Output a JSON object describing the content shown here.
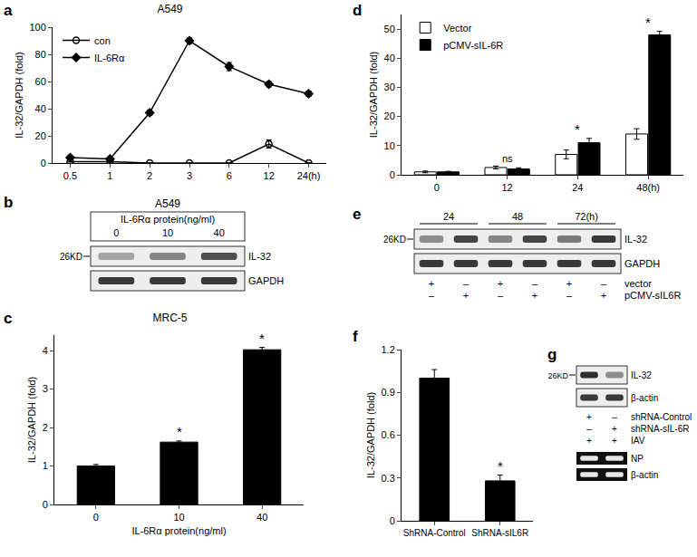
{
  "chart_data": [
    {
      "type": "line",
      "panel": "a",
      "title": "A549",
      "y_label": "IL-32/GAPDH (fold)",
      "categories": [
        "0.5",
        "1",
        "2",
        "3",
        "6",
        "12",
        "24(h)"
      ],
      "series": [
        {
          "name": "con",
          "color": "#000000",
          "marker": "circle-open",
          "values": [
            1,
            1,
            0,
            0,
            0,
            14,
            0
          ],
          "errors": [
            0.3,
            0.3,
            0.2,
            0.2,
            0.2,
            3,
            0.2
          ]
        },
        {
          "name": "IL-6Rα",
          "color": "#000000",
          "marker": "diamond",
          "values": [
            4,
            3,
            37,
            90,
            71,
            58,
            51
          ],
          "errors": [
            1,
            0.5,
            2,
            2,
            3,
            2,
            2
          ]
        }
      ],
      "ylim": [
        0,
        100
      ],
      "yticks": [
        0,
        20,
        40,
        60,
        80,
        100
      ],
      "legend": "upper left",
      "grid": false
    },
    {
      "type": "bar",
      "panel": "c",
      "title": "MRC-5",
      "x_label": "IL-6Rα protein(ng/ml)",
      "y_label": "IL-32/GAPDH (fold)",
      "categories": [
        "0",
        "10",
        "40"
      ],
      "values": [
        1,
        1.62,
        4.02
      ],
      "errors": [
        0.04,
        0.03,
        0.06
      ],
      "color": "#000000",
      "ylim": [
        0,
        4.4
      ],
      "yticks": [
        0,
        1,
        2,
        3,
        4
      ],
      "grid": false,
      "annotations": [
        {
          "text": "*",
          "category": "10"
        },
        {
          "text": "*",
          "category": "40"
        }
      ]
    },
    {
      "type": "bar",
      "panel": "d",
      "y_label": "IL-32/GAPDH (fold)",
      "categories": [
        "0",
        "12",
        "24",
        "48(h)"
      ],
      "series": [
        {
          "name": "Vector",
          "color": "#ffffff",
          "values": [
            1,
            2.5,
            7,
            14
          ],
          "errors": [
            0.3,
            0.5,
            1.5,
            1.8
          ]
        },
        {
          "name": "pCMV-sIL-6R",
          "color": "#000000",
          "values": [
            1,
            2,
            11,
            48
          ],
          "errors": [
            0.2,
            0.4,
            1.5,
            1.2
          ]
        }
      ],
      "ylim": [
        0,
        55
      ],
      "yticks": [
        0,
        10,
        20,
        30,
        40,
        50
      ],
      "legend": "upper left",
      "grid": false,
      "annotations": [
        {
          "text": "ns",
          "category": "12"
        },
        {
          "text": "*",
          "category": "24"
        },
        {
          "text": "*",
          "category": "48(h)"
        }
      ]
    },
    {
      "type": "bar",
      "panel": "f",
      "y_label": "IL-32/GAPDH (fold)",
      "categories": [
        "ShRNA-Control",
        "ShRNA-sIL6R"
      ],
      "values": [
        1.0,
        0.28
      ],
      "errors": [
        0.06,
        0.04
      ],
      "color": "#000000",
      "ylim": [
        0,
        1.2
      ],
      "yticks": [
        0,
        0.3,
        0.6,
        0.9,
        1.2
      ],
      "grid": false,
      "annotations": [
        {
          "text": "*",
          "category": "ShRNA-sIL6R"
        }
      ]
    }
  ],
  "blots": [
    {
      "panel": "b",
      "title": "A549",
      "header": "IL-6Rα protein(ng/ml)",
      "lanes": [
        "0",
        "10",
        "40"
      ],
      "rows": [
        {
          "label": "IL-32",
          "size": "26KD"
        },
        {
          "label": "GAPDH"
        }
      ]
    },
    {
      "panel": "e",
      "groups": [
        "24",
        "48",
        "72(h)"
      ],
      "rows": [
        {
          "label": "IL-32",
          "size": "26KD"
        },
        {
          "label": "GAPDH"
        }
      ],
      "signs": [
        {
          "label": "vector",
          "values": [
            "+",
            "–",
            "+",
            "–",
            "+",
            "–"
          ]
        },
        {
          "label": "pCMV-sIL6R",
          "values": [
            "–",
            "+",
            "–",
            "+",
            "–",
            "+"
          ]
        }
      ]
    },
    {
      "panel": "g",
      "rows": [
        {
          "label": "IL-32",
          "size": "26KD"
        },
        {
          "label": "β-actin"
        }
      ],
      "signs": [
        {
          "label": "shRNA-Control",
          "values": [
            "+",
            "–"
          ]
        },
        {
          "label": "shRNA-sIL-6R",
          "values": [
            "–",
            "+"
          ]
        },
        {
          "label": "IAV",
          "values": [
            "+",
            "+"
          ]
        }
      ],
      "gel_rows": [
        {
          "label": "NP"
        },
        {
          "label": "β-actin"
        }
      ]
    }
  ]
}
